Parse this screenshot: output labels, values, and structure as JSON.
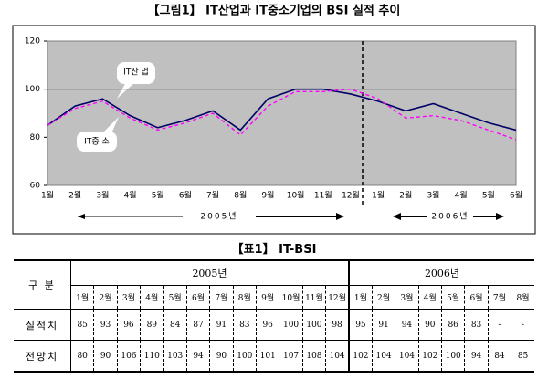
{
  "chart_data": {
    "type": "line",
    "title": "【그림1】 IT산업과 IT중소기업의 BSI 실적 추이",
    "categories": [
      "1월",
      "2월",
      "3월",
      "4월",
      "5월",
      "6월",
      "7월",
      "8월",
      "9월",
      "10월",
      "11월",
      "12월",
      "1월",
      "2월",
      "3월",
      "4월",
      "5월",
      "6월"
    ],
    "series": [
      {
        "name": "IT산 업",
        "color": "#000066",
        "values": [
          85,
          93,
          96,
          89,
          84,
          87,
          91,
          83,
          96,
          100,
          100,
          98,
          95,
          91,
          94,
          90,
          86,
          83
        ]
      },
      {
        "name": "IT중 소",
        "color": "#ff00ff",
        "values": [
          85,
          92,
          95,
          88,
          83,
          86,
          90,
          81,
          93,
          99,
          99,
          100,
          96,
          88,
          89,
          87,
          83,
          79
        ]
      }
    ],
    "ylim": [
      60,
      120
    ],
    "yticks": [
      60,
      80,
      100,
      120
    ],
    "reference_line": 100,
    "annotations": [
      "2005년",
      "2006년"
    ]
  },
  "table": {
    "title": "【표1】 IT-BSI",
    "corner": "구 분",
    "years": [
      "2005년",
      "2006년"
    ],
    "months_2005": [
      "1월",
      "2월",
      "3월",
      "4월",
      "5월",
      "6월",
      "7월",
      "8월",
      "9월",
      "10월",
      "11월",
      "12월"
    ],
    "months_2006": [
      "1월",
      "2월",
      "3월",
      "4월",
      "5월",
      "6월",
      "7월",
      "8월"
    ],
    "rows": [
      {
        "label": "실적치",
        "cells": [
          "85",
          "93",
          "96",
          "89",
          "84",
          "87",
          "91",
          "83",
          "96",
          "100",
          "100",
          "98",
          "95",
          "91",
          "94",
          "90",
          "86",
          "83",
          "-",
          "-"
        ]
      },
      {
        "label": "전망치",
        "cells": [
          "80",
          "90",
          "106",
          "110",
          "103",
          "94",
          "90",
          "100",
          "101",
          "107",
          "108",
          "104",
          "102",
          "104",
          "104",
          "102",
          "100",
          "94",
          "84",
          "85"
        ]
      }
    ]
  }
}
